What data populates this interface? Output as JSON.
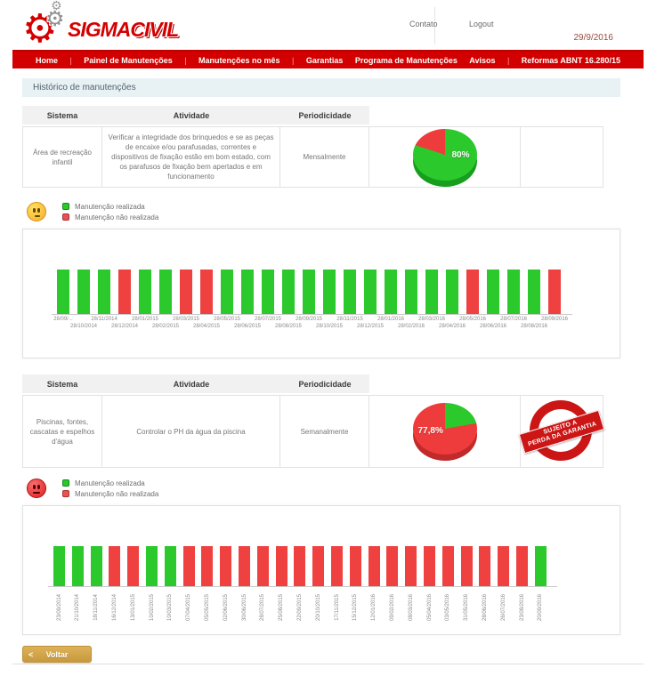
{
  "header": {
    "logo_sigma": "SIGMA",
    "logo_civil": "CIVIL",
    "links": {
      "contato": "Contato",
      "logout": "Logout"
    },
    "date": "29/9/2016"
  },
  "nav": {
    "items": [
      {
        "label": "Home",
        "sep": true
      },
      {
        "label": "Painel de Manutenções",
        "sep": true
      },
      {
        "label": "Manutenções no mês",
        "sep": true
      },
      {
        "label": "Garantias",
        "sep": false
      },
      {
        "label": "Programa de Manutenções",
        "sep": false
      },
      {
        "label": "Avisos",
        "sep": true
      },
      {
        "label": "Reformas ABNT 16.280/15",
        "sep": false
      }
    ]
  },
  "page_title": "Histórico de manutenções",
  "legend": {
    "realizada": "Manutenção realizada",
    "nao_realizada": "Manutenção não realizada"
  },
  "colors": {
    "nav_red": "#d20000",
    "green": "#2bc92b",
    "green_side": "#179e1f",
    "red": "#ee3b3b",
    "red_side": "#c02a2a",
    "bar_green": "#2bc92b",
    "bar_red": "#f04141",
    "gold_button": "#cf9f45",
    "stamp_red": "#cc1616"
  },
  "sections": [
    {
      "table": {
        "headers": [
          "Sistema",
          "Atividade",
          "Periodicidade"
        ],
        "sistema": "Área de recreação infantil",
        "atividade": "Verificar a integridade dos brinquedos e se as peças de encaixe e/ou parafusadas, correntes e dispositivos de fixação estão em bom estado, com os parafusos de fixação bem apertados e em funcionamento",
        "periodicidade": "Mensalmente"
      },
      "pie": {
        "label": "80%",
        "green_pct": 80,
        "red_pct": 20
      },
      "mood": "neutral",
      "chart_data": {
        "type": "bar",
        "title": "",
        "xlabel": "",
        "ylabel": "",
        "legend": [
          "Manutenção realizada",
          "Manutenção não realizada"
        ],
        "categories": [
          "28/09/...",
          "28/10/2014",
          "28/11/2014",
          "28/12/2014",
          "28/01/2015",
          "28/02/2015",
          "28/03/2015",
          "28/04/2015",
          "28/05/2015",
          "28/06/2015",
          "28/07/2015",
          "28/08/2015",
          "28/09/2015",
          "28/10/2015",
          "28/11/2015",
          "28/12/2015",
          "28/01/2016",
          "28/02/2016",
          "28/03/2016",
          "28/04/2016",
          "28/05/2016",
          "28/06/2016",
          "28/07/2016",
          "28/08/2016",
          "28/09/2016"
        ],
        "statuses": [
          "realizada",
          "realizada",
          "realizada",
          "nao_realizada",
          "realizada",
          "realizada",
          "nao_realizada",
          "nao_realizada",
          "realizada",
          "realizada",
          "realizada",
          "realizada",
          "realizada",
          "realizada",
          "realizada",
          "realizada",
          "realizada",
          "realizada",
          "realizada",
          "realizada",
          "nao_realizada",
          "realizada",
          "realizada",
          "realizada",
          "nao_realizada"
        ],
        "values": [
          1,
          1,
          1,
          1,
          1,
          1,
          1,
          1,
          1,
          1,
          1,
          1,
          1,
          1,
          1,
          1,
          1,
          1,
          1,
          1,
          1,
          1,
          1,
          1,
          1
        ],
        "label_style": "staggered"
      }
    },
    {
      "table": {
        "headers": [
          "Sistema",
          "Atividade",
          "Periodicidade"
        ],
        "sistema": "Piscinas, fontes, cascatas e espelhos d'água",
        "atividade": "Controlar o PH da água da piscina",
        "periodicidade": "Semanalmente"
      },
      "pie": {
        "label": "77,8%",
        "green_pct": 22.2,
        "red_pct": 77.8
      },
      "stamp": {
        "line1": "SUJEITO A",
        "line2": "PERDA DA GARANTIA"
      },
      "mood": "sad",
      "chart_data": {
        "type": "bar",
        "title": "",
        "xlabel": "",
        "ylabel": "",
        "legend": [
          "Manutenção realizada",
          "Manutenção não realizada"
        ],
        "categories": [
          "23/09/2014",
          "21/10/2014",
          "18/11/2014",
          "16/12/2014",
          "13/01/2015",
          "10/02/2015",
          "10/03/2015",
          "07/04/2015",
          "05/05/2015",
          "02/06/2015",
          "30/06/2015",
          "28/07/2015",
          "25/08/2015",
          "22/09/2015",
          "20/10/2015",
          "17/11/2015",
          "15/12/2015",
          "12/01/2016",
          "09/02/2016",
          "08/03/2016",
          "05/04/2016",
          "03/05/2016",
          "31/05/2016",
          "28/06/2016",
          "26/07/2016",
          "23/08/2016",
          "20/09/2016"
        ],
        "statuses": [
          "realizada",
          "realizada",
          "realizada",
          "nao_realizada",
          "nao_realizada",
          "realizada",
          "realizada",
          "nao_realizada",
          "nao_realizada",
          "nao_realizada",
          "nao_realizada",
          "nao_realizada",
          "nao_realizada",
          "nao_realizada",
          "nao_realizada",
          "nao_realizada",
          "nao_realizada",
          "nao_realizada",
          "nao_realizada",
          "nao_realizada",
          "nao_realizada",
          "nao_realizada",
          "nao_realizada",
          "nao_realizada",
          "nao_realizada",
          "nao_realizada",
          "realizada"
        ],
        "values": [
          1,
          1,
          1,
          1,
          1,
          1,
          1,
          1,
          1,
          1,
          1,
          1,
          1,
          1,
          1,
          1,
          1,
          1,
          1,
          1,
          1,
          1,
          1,
          1,
          1,
          1,
          1
        ],
        "label_style": "vertical"
      }
    }
  ],
  "footer": {
    "back_label": "Voltar",
    "chevron": "<"
  }
}
